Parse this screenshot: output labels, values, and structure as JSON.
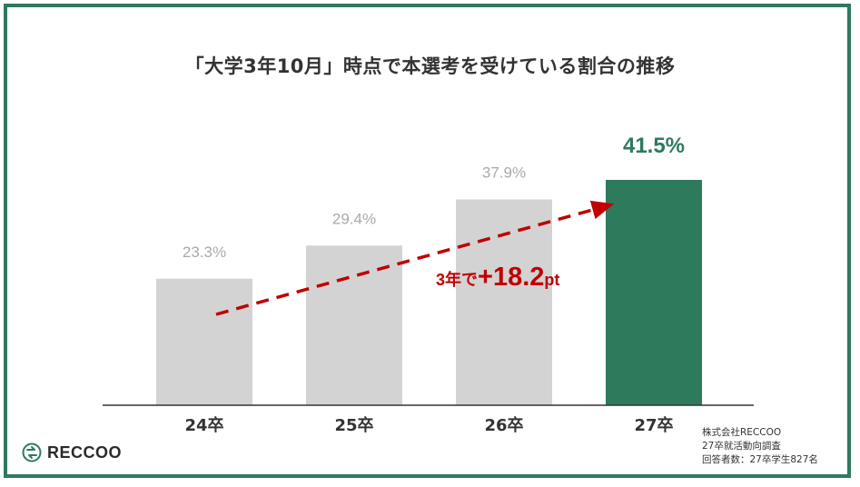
{
  "chart_data": {
    "type": "bar",
    "title": "「大学3年10月」時点で本選考を受けている割合の推移",
    "categories": [
      "24卒",
      "25卒",
      "26卒",
      "27卒"
    ],
    "values": [
      23.3,
      29.4,
      37.9,
      41.5
    ],
    "value_labels": [
      "23.3%",
      "29.4%",
      "37.9%",
      "41.5%"
    ],
    "unit": "%",
    "ylim": [
      0,
      50
    ],
    "grid": false,
    "bar_colors": [
      "#d3d3d3",
      "#d3d3d3",
      "#d3d3d3",
      "#2e7a5c"
    ],
    "highlight_index": 3,
    "annotation": {
      "prefix": "3年で",
      "value": "+18.2",
      "suffix": "pt",
      "color": "#c00000"
    }
  },
  "source_lines": [
    "株式会社RECCOO",
    "27卒就活動向調査",
    "回答者数：27卒学生827名"
  ],
  "logo": {
    "text": "RECCOO",
    "icon": "reccoo-logo-icon"
  },
  "colors": {
    "accent": "#2e7a5c",
    "bar": "#d3d3d3",
    "annotation": "#c00000"
  }
}
